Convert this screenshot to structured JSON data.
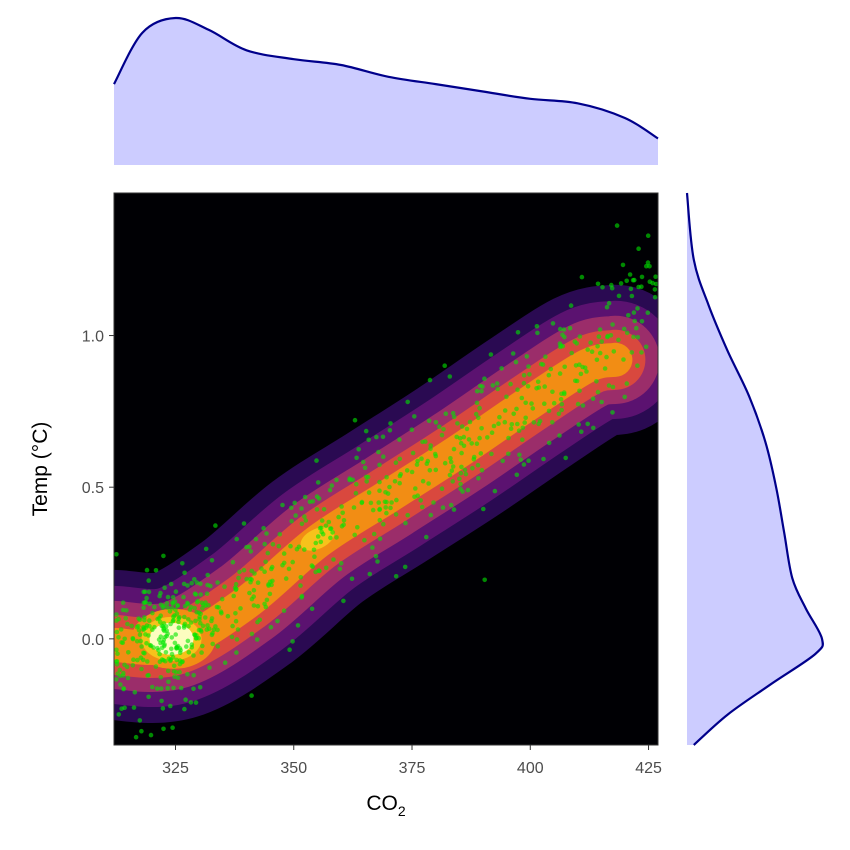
{
  "colors": {
    "panel_background": "#000004",
    "marginal_fill": "#ccccff",
    "marginal_line": "#00008b",
    "points": "#00e600",
    "density_levels": [
      "#2a0a52",
      "#5b1270",
      "#9b2d6a",
      "#d9483e",
      "#f28d14",
      "#f7c21b",
      "#fcfdbf"
    ]
  },
  "chart_data": {
    "type": "scatter",
    "subtype": "marginal density plot with 2D density contours",
    "title": "",
    "xlabel": "CO2",
    "xlabel_main": "CO",
    "xlabel_subscript": "2",
    "ylabel": "Temp (°C)",
    "xlim": [
      312,
      427
    ],
    "ylim": [
      -0.35,
      1.47
    ],
    "x_ticks": [
      {
        "value": 325,
        "label": "325"
      },
      {
        "value": 350,
        "label": "350"
      },
      {
        "value": 375,
        "label": "375"
      },
      {
        "value": 400,
        "label": "400"
      },
      {
        "value": 425,
        "label": "425"
      }
    ],
    "y_ticks": [
      {
        "value": 0.0,
        "label": "0.0"
      },
      {
        "value": 0.5,
        "label": "0.5"
      },
      {
        "value": 1.0,
        "label": "1.0"
      }
    ],
    "grid": false,
    "legend": "none",
    "scatter_points": {
      "approx_count": 780,
      "trend_points": [
        [
          312,
          -0.05
        ],
        [
          325,
          0.0
        ],
        [
          340,
          0.15
        ],
        [
          355,
          0.32
        ],
        [
          370,
          0.5
        ],
        [
          385,
          0.62
        ],
        [
          400,
          0.78
        ],
        [
          415,
          0.95
        ],
        [
          425,
          1.15
        ]
      ],
      "spread": 0.12
    },
    "density_contours": {
      "levels": 7,
      "ridge": [
        [
          312,
          -0.02
        ],
        [
          325,
          -0.02
        ],
        [
          340,
          0.12
        ],
        [
          355,
          0.32
        ],
        [
          370,
          0.47
        ],
        [
          385,
          0.62
        ],
        [
          400,
          0.78
        ],
        [
          412,
          0.9
        ],
        [
          418,
          0.92
        ]
      ],
      "peak": [
        325,
        0.0
      ]
    },
    "marginal_x_density": {
      "x": [
        312,
        318,
        325,
        332,
        340,
        350,
        360,
        370,
        380,
        390,
        400,
        410,
        420,
        427
      ],
      "density": [
        0.55,
        0.9,
        1.0,
        0.92,
        0.78,
        0.72,
        0.68,
        0.6,
        0.55,
        0.5,
        0.45,
        0.42,
        0.32,
        0.18
      ]
    },
    "marginal_y_density": {
      "y": [
        -0.35,
        -0.25,
        -0.15,
        -0.05,
        0.0,
        0.1,
        0.2,
        0.35,
        0.5,
        0.65,
        0.8,
        0.95,
        1.1,
        1.25,
        1.47
      ],
      "density": [
        0.05,
        0.3,
        0.62,
        0.95,
        1.0,
        0.88,
        0.78,
        0.72,
        0.66,
        0.58,
        0.46,
        0.3,
        0.16,
        0.05,
        0.0
      ]
    }
  }
}
